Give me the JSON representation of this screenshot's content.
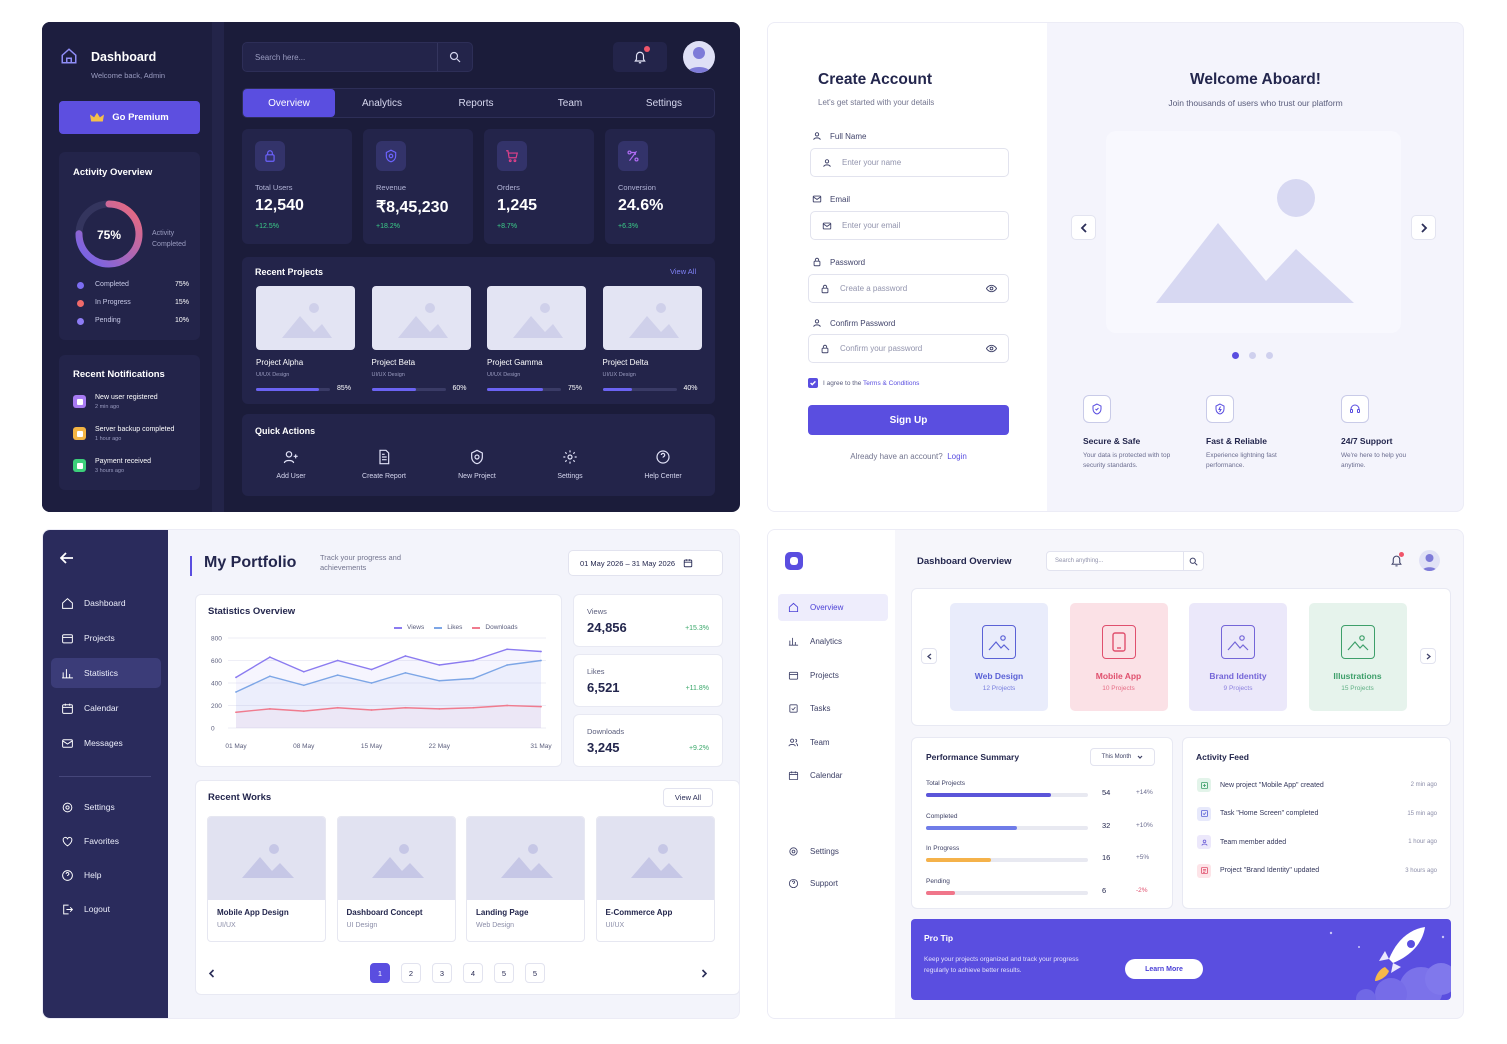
{
  "p1": {
    "brand_title": "Dashboard",
    "brand_subtitle": "Welcome back, Admin",
    "premium_label": "Go Premium",
    "activity": {
      "title": "Activity Overview",
      "percent": "75%",
      "percent_value": 75,
      "center_caption_1": "Activity",
      "center_caption_2": "Completed",
      "legend": [
        {
          "label": "Completed",
          "value": "75%",
          "color": "#7c6df2"
        },
        {
          "label": "In Progress",
          "value": "15%",
          "color": "#f06a6a"
        },
        {
          "label": "Pending",
          "value": "10%",
          "color": "#8d7cf5"
        }
      ]
    },
    "notifications": {
      "title": "Recent Notifications",
      "items": [
        {
          "title": "New user registered",
          "time": "2 min ago",
          "color": "#a77bf3"
        },
        {
          "title": "Server backup completed",
          "time": "1 hour ago",
          "color": "#f3b443"
        },
        {
          "title": "Payment received",
          "time": "3 hours ago",
          "color": "#3ccf7a"
        }
      ]
    },
    "search_placeholder": "Search here...",
    "tabs": [
      "Overview",
      "Analytics",
      "Reports",
      "Team",
      "Settings"
    ],
    "stats": [
      {
        "label": "Total Users",
        "value": "12,540",
        "change": "+12.5%",
        "icon": "lock-icon",
        "color": "#6c63ff"
      },
      {
        "label": "Revenue",
        "value": "₹8,45,230",
        "change": "+18.2%",
        "icon": "coin-icon",
        "color": "#6c63ff"
      },
      {
        "label": "Orders",
        "value": "1,245",
        "change": "+8.7%",
        "icon": "cart-icon",
        "color": "#e0408a"
      },
      {
        "label": "Conversion",
        "value": "24.6%",
        "change": "+6.3%",
        "icon": "conversion-icon",
        "color": "#b26cf5"
      }
    ],
    "projects": {
      "title": "Recent Projects",
      "view_all": "View All",
      "items": [
        {
          "name": "Project Alpha",
          "type": "UI/UX Design",
          "progress": "85%",
          "progress_value": 85
        },
        {
          "name": "Project Beta",
          "type": "UI/UX Design",
          "progress": "60%",
          "progress_value": 60
        },
        {
          "name": "Project Gamma",
          "type": "UI/UX Design",
          "progress": "75%",
          "progress_value": 75
        },
        {
          "name": "Project Delta",
          "type": "UI/UX Design",
          "progress": "40%",
          "progress_value": 40
        }
      ]
    },
    "quick_actions": {
      "title": "Quick Actions",
      "items": [
        {
          "label": "Add User",
          "icon": "add-user-icon"
        },
        {
          "label": "Create Report",
          "icon": "report-icon"
        },
        {
          "label": "New Project",
          "icon": "new-project-icon"
        },
        {
          "label": "Settings",
          "icon": "gear-icon"
        },
        {
          "label": "Help Center",
          "icon": "help-icon"
        }
      ]
    }
  },
  "p2": {
    "title": "Create Account",
    "subtitle": "Let's get started with your details",
    "fields": [
      {
        "label": "Full Name",
        "placeholder": "Enter your name"
      },
      {
        "label": "Email",
        "placeholder": "Enter your email"
      },
      {
        "label": "Password",
        "placeholder": "Create a password"
      },
      {
        "label": "Confirm Password",
        "placeholder": "Confirm your password"
      }
    ],
    "agree_prefix": "I agree to the ",
    "agree_link": "Terms & Conditions",
    "signup": "Sign Up",
    "have_account": "Already have an account?",
    "login": "Login",
    "welcome_title": "Welcome Aboard!",
    "welcome_subtitle": "Join thousands of users who trust our platform",
    "features": [
      {
        "title": "Secure & Safe",
        "desc1": "Your data is protected with top",
        "desc2": "security standards."
      },
      {
        "title": "Fast & Reliable",
        "desc1": "Experience lightning fast",
        "desc2": "performance."
      },
      {
        "title": "24/7 Support",
        "desc1": "We're here to help you",
        "desc2": "anytime."
      }
    ]
  },
  "p3": {
    "nav": [
      "Dashboard",
      "Projects",
      "Statistics",
      "Calendar",
      "Messages"
    ],
    "nav2": [
      "Settings",
      "Favorites",
      "Help",
      "Logout"
    ],
    "title": "My Portfolio",
    "subtitle_1": "Track your progress and",
    "subtitle_2": "achievements",
    "date_range": "01 May 2026  –  31 May 2026",
    "chart_title": "Statistics Overview",
    "chart_data": {
      "type": "line",
      "title": "Statistics Overview",
      "x": [
        "01 May",
        "04 May",
        "08 May",
        "11 May",
        "15 May",
        "18 May",
        "22 May",
        "25 May",
        "28 May",
        "31 May"
      ],
      "x_ticks": [
        "01 May",
        "08 May",
        "15 May",
        "22 May",
        "31 May"
      ],
      "y_ticks": [
        "0",
        "200",
        "400",
        "600",
        "800"
      ],
      "ylim": [
        0,
        800
      ],
      "legend_position": "top-right",
      "series": [
        {
          "name": "Views",
          "color": "#8b7bf0",
          "values": [
            450,
            630,
            500,
            600,
            520,
            640,
            560,
            600,
            700,
            680
          ]
        },
        {
          "name": "Likes",
          "color": "#7da6e6",
          "values": [
            320,
            460,
            380,
            470,
            400,
            490,
            420,
            440,
            560,
            600
          ]
        },
        {
          "name": "Downloads",
          "color": "#f07b8e",
          "values": [
            140,
            170,
            150,
            180,
            160,
            180,
            170,
            180,
            200,
            190
          ]
        }
      ]
    },
    "metrics": [
      {
        "label": "Views",
        "value": "24,856",
        "change": "+15.3%"
      },
      {
        "label": "Likes",
        "value": "6,521",
        "change": "+11.8%"
      },
      {
        "label": "Downloads",
        "value": "3,245",
        "change": "+9.2%"
      }
    ],
    "works_title": "Recent Works",
    "works_view_all": "View All",
    "works": [
      {
        "name": "Mobile App Design",
        "type": "UI/UX"
      },
      {
        "name": "Dashboard Concept",
        "type": "UI Design"
      },
      {
        "name": "Landing Page",
        "type": "Web Design"
      },
      {
        "name": "E-Commerce App",
        "type": "UI/UX"
      }
    ],
    "pages": [
      "1",
      "2",
      "3",
      "4",
      "5",
      "5"
    ]
  },
  "p4": {
    "nav": [
      "Overview",
      "Analytics",
      "Projects",
      "Tasks",
      "Team",
      "Calendar"
    ],
    "nav2": [
      "Settings",
      "Support"
    ],
    "title": "Dashboard Overview",
    "search_placeholder": "Search anything...",
    "categories": [
      {
        "name": "Web Design",
        "count": "12 Projects",
        "bg": "#e9ecfb",
        "fg": "#5b62d6"
      },
      {
        "name": "Mobile App",
        "count": "10 Projects",
        "bg": "#fbe1e6",
        "fg": "#e0506e"
      },
      {
        "name": "Brand Identity",
        "count": "9 Projects",
        "bg": "#ebe8fa",
        "fg": "#7466d8"
      },
      {
        "name": "Illustrations",
        "count": "15 Projects",
        "bg": "#e6f3ec",
        "fg": "#3e9f6a"
      }
    ],
    "performance": {
      "title": "Performance Summary",
      "period": "This Month",
      "items": [
        {
          "label": "Total Projects",
          "value": "54",
          "change": "+14%",
          "fill": 0.77,
          "color": "#5b55d9",
          "chg_color": "#6a6c8f"
        },
        {
          "label": "Completed",
          "value": "32",
          "change": "+10%",
          "fill": 0.56,
          "color": "#6f7ce8",
          "chg_color": "#6a6c8f"
        },
        {
          "label": "In Progress",
          "value": "16",
          "change": "+5%",
          "fill": 0.4,
          "color": "#f5b24a",
          "chg_color": "#6a6c8f"
        },
        {
          "label": "Pending",
          "value": "6",
          "change": "-2%",
          "fill": 0.18,
          "color": "#f0768a",
          "chg_color": "#e0506e"
        }
      ]
    },
    "activity": {
      "title": "Activity Feed",
      "items": [
        {
          "text": "New project \"Mobile App\" created",
          "time": "2 min ago",
          "bg": "#e3f4ea",
          "fg": "#3e9f6a"
        },
        {
          "text": "Task \"Home Screen\" completed",
          "time": "15 min ago",
          "bg": "#e7e9fb",
          "fg": "#5b62d6"
        },
        {
          "text": "Team member added",
          "time": "1 hour ago",
          "bg": "#ece8fb",
          "fg": "#7466d8"
        },
        {
          "text": "Project \"Brand Identity\" updated",
          "time": "3 hours ago",
          "bg": "#fde4e8",
          "fg": "#e0506e"
        }
      ]
    },
    "tip": {
      "title": "Pro Tip",
      "line1": "Keep your projects organized and track your progress",
      "line2": "regularly to achieve better results.",
      "button": "Learn More"
    }
  }
}
